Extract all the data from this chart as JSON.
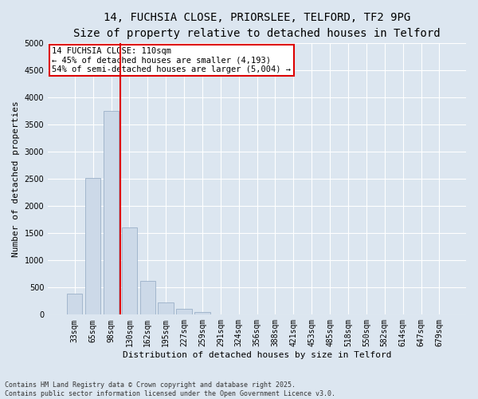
{
  "title_line1": "14, FUCHSIA CLOSE, PRIORSLEE, TELFORD, TF2 9PG",
  "title_line2": "Size of property relative to detached houses in Telford",
  "categories": [
    "33sqm",
    "65sqm",
    "98sqm",
    "130sqm",
    "162sqm",
    "195sqm",
    "227sqm",
    "259sqm",
    "291sqm",
    "324sqm",
    "356sqm",
    "388sqm",
    "421sqm",
    "453sqm",
    "485sqm",
    "518sqm",
    "550sqm",
    "582sqm",
    "614sqm",
    "647sqm",
    "679sqm"
  ],
  "values": [
    380,
    2520,
    3750,
    1600,
    620,
    230,
    110,
    50,
    0,
    0,
    0,
    0,
    0,
    0,
    0,
    0,
    0,
    0,
    0,
    0,
    0
  ],
  "bar_color": "#ccd9e8",
  "bar_edgecolor": "#9ab0c8",
  "vline_x": 2.5,
  "vline_color": "#dd0000",
  "ylabel": "Number of detached properties",
  "xlabel": "Distribution of detached houses by size in Telford",
  "ylim": [
    0,
    5000
  ],
  "yticks": [
    0,
    500,
    1000,
    1500,
    2000,
    2500,
    3000,
    3500,
    4000,
    4500,
    5000
  ],
  "annotation_text": "14 FUCHSIA CLOSE: 110sqm\n← 45% of detached houses are smaller (4,193)\n54% of semi-detached houses are larger (5,004) →",
  "footer_line1": "Contains HM Land Registry data © Crown copyright and database right 2025.",
  "footer_line2": "Contains public sector information licensed under the Open Government Licence v3.0.",
  "bg_color": "#dce6f0",
  "plot_bg_color": "#dce6f0",
  "grid_color": "#ffffff",
  "title_fontsize": 10,
  "subtitle_fontsize": 9,
  "tick_fontsize": 7,
  "ylabel_fontsize": 8,
  "xlabel_fontsize": 8,
  "footer_fontsize": 6,
  "annotation_fontsize": 7.5
}
